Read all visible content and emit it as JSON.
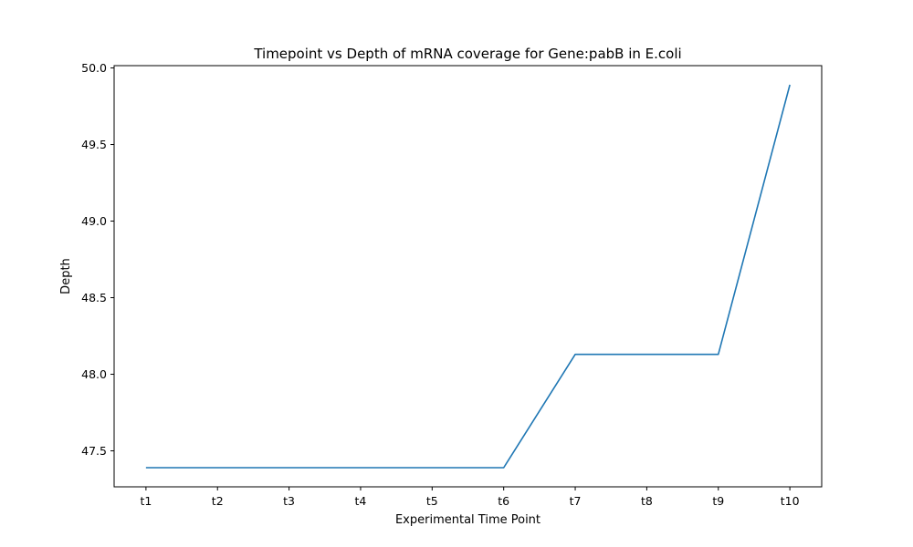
{
  "chart_data": {
    "type": "line",
    "title": "Timepoint vs Depth of mRNA coverage for Gene:pabB in E.coli",
    "xlabel": "Experimental Time Point",
    "ylabel": "Depth",
    "categories": [
      "t1",
      "t2",
      "t3",
      "t4",
      "t5",
      "t6",
      "t7",
      "t8",
      "t9",
      "t10"
    ],
    "series": [
      {
        "values": [
          47.39,
          47.39,
          47.39,
          47.39,
          47.39,
          47.39,
          48.13,
          48.13,
          48.13,
          49.89
        ],
        "color": "#1f77b4"
      }
    ],
    "ylim": [
      47.265,
      50.015
    ],
    "yticks": [
      47.5,
      48.0,
      48.5,
      49.0,
      49.5,
      50.0
    ],
    "ytick_labels": [
      "47.5",
      "48.0",
      "48.5",
      "49.0",
      "49.5",
      "50.0"
    ],
    "grid": false,
    "legend": "none"
  }
}
